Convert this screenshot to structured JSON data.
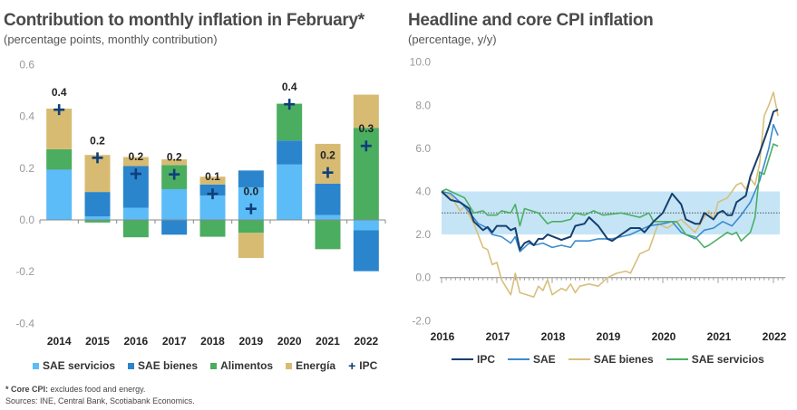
{
  "left": {
    "title": "Contribution to monthly inflation in February*",
    "subtitle": "(percentage points, monthly contribution)"
  },
  "right": {
    "title": "Headline and core CPI inflation",
    "subtitle": "(percentage, y/y)"
  },
  "footnote": {
    "core_label": "* Core CPI:",
    "core_text": " excludes food and energy.",
    "sources": "Sources: INE, Central Bank, Scotiabank Economics."
  },
  "chart_data": [
    {
      "type": "bar",
      "stacked": true,
      "title": "Contribution to monthly inflation in February*",
      "ylim": [
        -0.4,
        0.6
      ],
      "yticks": [
        "0.6",
        "0.4",
        "0.2",
        "0.0",
        "-0.2",
        "-0.4"
      ],
      "ytick_values": [
        0.6,
        0.4,
        0.2,
        0.0,
        -0.2,
        -0.4
      ],
      "categories": [
        "2014",
        "2015",
        "2016",
        "2017",
        "2018",
        "2019",
        "2020",
        "2021",
        "2022"
      ],
      "series": [
        {
          "name": "SAE servicios",
          "color": "#5bbcf7",
          "values": [
            0.193,
            0.014,
            0.047,
            0.119,
            0.094,
            0.126,
            0.214,
            0.019,
            -0.04
          ]
        },
        {
          "name": "SAE bienes",
          "color": "#2b85cc",
          "values": [
            0.002,
            0.094,
            0.161,
            -0.057,
            0.043,
            0.065,
            0.093,
            0.121,
            -0.158
          ]
        },
        {
          "name": "Alimentos",
          "color": "#4bad5f",
          "values": [
            0.078,
            -0.01,
            -0.067,
            0.093,
            -0.065,
            -0.05,
            0.142,
            -0.113,
            0.356
          ]
        },
        {
          "name": "Energía",
          "color": "#d7bb72",
          "values": [
            0.157,
            0.143,
            0.035,
            0.022,
            0.03,
            -0.097,
            0.0,
            0.154,
            0.128
          ]
        }
      ],
      "marker_series": {
        "name": "IPC",
        "color": "#0f3f7a",
        "values": [
          0.426,
          0.24,
          0.178,
          0.176,
          0.101,
          0.043,
          0.447,
          0.183,
          0.286
        ]
      },
      "data_labels": [
        "0.4",
        "0.2",
        "0.2",
        "0.2",
        "0.1",
        "0.0",
        "0.4",
        "0.2",
        "0.3"
      ],
      "legend": "bottom"
    },
    {
      "type": "line",
      "title": "Headline and core CPI inflation",
      "ylim": [
        -2.0,
        10.0
      ],
      "yticks": [
        "10.0",
        "8.0",
        "6.0",
        "4.0",
        "2.0",
        "0.0",
        "-2.0"
      ],
      "ytick_values": [
        10,
        8,
        6,
        4,
        2,
        0,
        -2
      ],
      "xticks": [
        "2016",
        "2017",
        "2018",
        "2019",
        "2020",
        "2021",
        "2022"
      ],
      "target_band": [
        2.0,
        4.0
      ],
      "target_line": 3.0,
      "band_color": "#c5e5f7",
      "legend": "bottom",
      "series": [
        {
          "name": "IPC",
          "color": "#173f6e",
          "points": [
            [
              "2016-01",
              4.0
            ],
            [
              "2016-03",
              3.6
            ],
            [
              "2016-05",
              3.5
            ],
            [
              "2016-07",
              3.2
            ],
            [
              "2016-08",
              2.6
            ],
            [
              "2016-10",
              2.2
            ],
            [
              "2016-11",
              2.35
            ],
            [
              "2016-12",
              2.1
            ],
            [
              "2017-01",
              2.4
            ],
            [
              "2017-03",
              2.4
            ],
            [
              "2017-04",
              2.2
            ],
            [
              "2017-05",
              2.3
            ],
            [
              "2017-06",
              1.3
            ],
            [
              "2017-07",
              1.6
            ],
            [
              "2017-08",
              1.7
            ],
            [
              "2017-09",
              1.5
            ],
            [
              "2017-10",
              1.8
            ],
            [
              "2017-11",
              1.8
            ],
            [
              "2017-12",
              2.0
            ],
            [
              "2018-03",
              1.75
            ],
            [
              "2018-05",
              1.9
            ],
            [
              "2018-06",
              2.4
            ],
            [
              "2018-08",
              2.5
            ],
            [
              "2018-09",
              2.8
            ],
            [
              "2018-11",
              2.4
            ],
            [
              "2019-01",
              1.8
            ],
            [
              "2019-02",
              1.7
            ],
            [
              "2019-04",
              2.0
            ],
            [
              "2019-06",
              2.3
            ],
            [
              "2019-08",
              2.3
            ],
            [
              "2019-09",
              2.1
            ],
            [
              "2019-11",
              2.6
            ],
            [
              "2020-01",
              3.0
            ],
            [
              "2020-03",
              3.9
            ],
            [
              "2020-05",
              3.4
            ],
            [
              "2020-06",
              2.7
            ],
            [
              "2020-08",
              2.5
            ],
            [
              "2020-09",
              2.5
            ],
            [
              "2020-10",
              3.0
            ],
            [
              "2020-12",
              2.7
            ],
            [
              "2021-01",
              3.0
            ],
            [
              "2021-02",
              3.1
            ],
            [
              "2021-03",
              2.9
            ],
            [
              "2021-04",
              2.9
            ],
            [
              "2021-05",
              3.5
            ],
            [
              "2021-07",
              3.8
            ],
            [
              "2021-08",
              4.7
            ],
            [
              "2021-10",
              5.8
            ],
            [
              "2021-12",
              7.0
            ],
            [
              "2022-01",
              7.7
            ],
            [
              "2022-02",
              7.8
            ]
          ]
        },
        {
          "name": "SAE",
          "color": "#3a8bd0",
          "points": [
            [
              "2016-01",
              4.0
            ],
            [
              "2016-03",
              3.9
            ],
            [
              "2016-06",
              3.3
            ],
            [
              "2016-09",
              2.5
            ],
            [
              "2016-11",
              2.3
            ],
            [
              "2016-12",
              2.0
            ],
            [
              "2017-02",
              1.9
            ],
            [
              "2017-04",
              1.6
            ],
            [
              "2017-05",
              1.9
            ],
            [
              "2017-06",
              1.2
            ],
            [
              "2017-08",
              1.6
            ],
            [
              "2017-09",
              1.5
            ],
            [
              "2017-11",
              1.6
            ],
            [
              "2018-01",
              1.4
            ],
            [
              "2018-03",
              1.5
            ],
            [
              "2018-05",
              1.4
            ],
            [
              "2018-06",
              1.7
            ],
            [
              "2018-09",
              1.7
            ],
            [
              "2018-11",
              1.8
            ],
            [
              "2019-02",
              1.8
            ],
            [
              "2019-04",
              1.9
            ],
            [
              "2019-06",
              2.0
            ],
            [
              "2019-08",
              2.2
            ],
            [
              "2019-10",
              2.4
            ],
            [
              "2020-01",
              2.5
            ],
            [
              "2020-03",
              2.6
            ],
            [
              "2020-05",
              2.1
            ],
            [
              "2020-07",
              1.9
            ],
            [
              "2020-08",
              1.8
            ],
            [
              "2020-10",
              2.2
            ],
            [
              "2020-12",
              2.3
            ],
            [
              "2021-02",
              2.6
            ],
            [
              "2021-04",
              2.4
            ],
            [
              "2021-06",
              2.9
            ],
            [
              "2021-08",
              3.5
            ],
            [
              "2021-10",
              4.5
            ],
            [
              "2021-12",
              6.0
            ],
            [
              "2022-01",
              7.1
            ],
            [
              "2022-02",
              6.6
            ]
          ]
        },
        {
          "name": "SAE bienes",
          "color": "#d9bf7c",
          "points": [
            [
              "2016-01",
              3.9
            ],
            [
              "2016-03",
              3.8
            ],
            [
              "2016-05",
              3.1
            ],
            [
              "2016-06",
              3.3
            ],
            [
              "2016-08",
              2.5
            ],
            [
              "2016-10",
              1.4
            ],
            [
              "2016-11",
              1.3
            ],
            [
              "2016-12",
              0.6
            ],
            [
              "2017-01",
              0.7
            ],
            [
              "2017-02",
              -0.1
            ],
            [
              "2017-04",
              -0.8
            ],
            [
              "2017-05",
              0.2
            ],
            [
              "2017-06",
              -0.7
            ],
            [
              "2017-09",
              -0.9
            ],
            [
              "2017-10",
              -0.4
            ],
            [
              "2017-11",
              -0.6
            ],
            [
              "2017-12",
              -0.1
            ],
            [
              "2018-01",
              -0.8
            ],
            [
              "2018-03",
              -0.5
            ],
            [
              "2018-04",
              -0.6
            ],
            [
              "2018-05",
              -0.3
            ],
            [
              "2018-06",
              -0.7
            ],
            [
              "2018-07",
              -0.4
            ],
            [
              "2018-09",
              -0.3
            ],
            [
              "2018-11",
              -0.4
            ],
            [
              "2019-01",
              0.0
            ],
            [
              "2019-03",
              0.2
            ],
            [
              "2019-05",
              0.3
            ],
            [
              "2019-06",
              0.2
            ],
            [
              "2019-08",
              1.1
            ],
            [
              "2019-10",
              1.3
            ],
            [
              "2019-12",
              2.5
            ],
            [
              "2020-02",
              2.3
            ],
            [
              "2020-04",
              2.6
            ],
            [
              "2020-05",
              2.7
            ],
            [
              "2020-07",
              2.3
            ],
            [
              "2020-08",
              2.1
            ],
            [
              "2020-10",
              2.8
            ],
            [
              "2020-11",
              3.1
            ],
            [
              "2020-12",
              2.7
            ],
            [
              "2021-01",
              3.5
            ],
            [
              "2021-03",
              3.7
            ],
            [
              "2021-05",
              4.3
            ],
            [
              "2021-06",
              4.4
            ],
            [
              "2021-07",
              4.1
            ],
            [
              "2021-08",
              4.6
            ],
            [
              "2021-09",
              4.3
            ],
            [
              "2021-10",
              5.3
            ],
            [
              "2021-11",
              7.5
            ],
            [
              "2021-12",
              8.0
            ],
            [
              "2022-01",
              8.6
            ],
            [
              "2022-02",
              7.5
            ]
          ]
        },
        {
          "name": "SAE servicios",
          "color": "#4caf63",
          "points": [
            [
              "2016-01",
              4.0
            ],
            [
              "2016-02",
              4.1
            ],
            [
              "2016-04",
              3.9
            ],
            [
              "2016-06",
              3.7
            ],
            [
              "2016-08",
              3.0
            ],
            [
              "2016-10",
              3.1
            ],
            [
              "2016-11",
              2.9
            ],
            [
              "2017-01",
              2.9
            ],
            [
              "2017-02",
              3.1
            ],
            [
              "2017-04",
              3.0
            ],
            [
              "2017-05",
              3.4
            ],
            [
              "2017-06",
              2.4
            ],
            [
              "2017-07",
              3.2
            ],
            [
              "2017-10",
              3.0
            ],
            [
              "2017-12",
              2.5
            ],
            [
              "2018-01",
              2.6
            ],
            [
              "2018-03",
              2.6
            ],
            [
              "2018-05",
              2.7
            ],
            [
              "2018-06",
              3.0
            ],
            [
              "2018-08",
              2.9
            ],
            [
              "2018-10",
              3.1
            ],
            [
              "2018-12",
              2.9
            ],
            [
              "2019-04",
              3.0
            ],
            [
              "2019-08",
              2.8
            ],
            [
              "2019-10",
              3.0
            ],
            [
              "2019-11",
              2.6
            ],
            [
              "2020-02",
              2.6
            ],
            [
              "2020-04",
              2.6
            ],
            [
              "2020-06",
              2.0
            ],
            [
              "2020-08",
              1.9
            ],
            [
              "2020-10",
              1.4
            ],
            [
              "2020-11",
              1.5
            ],
            [
              "2021-01",
              1.8
            ],
            [
              "2021-03",
              2.1
            ],
            [
              "2021-04",
              2.0
            ],
            [
              "2021-05",
              2.1
            ],
            [
              "2021-06",
              1.7
            ],
            [
              "2021-08",
              2.1
            ],
            [
              "2021-09",
              2.8
            ],
            [
              "2021-10",
              4.9
            ],
            [
              "2021-11",
              4.8
            ],
            [
              "2022-01",
              6.2
            ],
            [
              "2022-02",
              6.1
            ]
          ]
        }
      ]
    }
  ]
}
